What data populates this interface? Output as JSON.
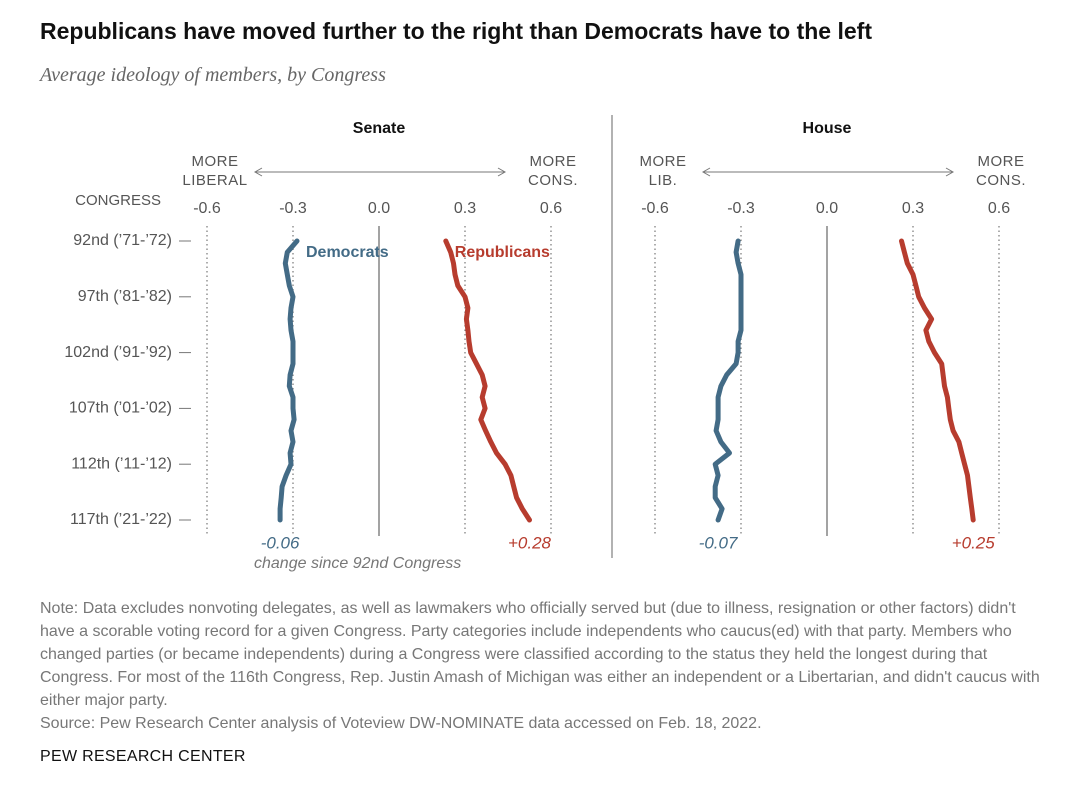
{
  "chart_data": {
    "type": "line",
    "title": "Republicans have moved further to the right than Democrats have to the left",
    "subtitle": "Average ideology of members, by Congress",
    "y_label": "CONGRESS",
    "categories": [
      "92nd (’71-’72)",
      null,
      null,
      null,
      null,
      "97th (’81-’82)",
      null,
      null,
      null,
      null,
      "102nd (’91-’92)",
      null,
      null,
      null,
      null,
      "107th (’01-’02)",
      null,
      null,
      null,
      null,
      "112th (’11-’12)",
      null,
      null,
      null,
      null,
      "117th (’21-’22)"
    ],
    "change_note": "change since 92nd Congress",
    "xlim": [
      -0.6,
      0.6
    ],
    "xticks": [
      -0.6,
      -0.3,
      {
        "value": 0,
        "label": "0.0"
      },
      0.3,
      0.6
    ],
    "grid": true,
    "panels": [
      {
        "title": "Senate",
        "left_label": "MORE LIBERAL",
        "right_label": "MORE CONS.",
        "series": [
          {
            "name": "Democrats",
            "color": "#436b86",
            "change": -0.06,
            "values": [
              -0.286,
              -0.32,
              -0.327,
              -0.32,
              -0.313,
              -0.3,
              -0.307,
              -0.31,
              -0.307,
              -0.3,
              -0.3,
              -0.3,
              -0.31,
              -0.313,
              -0.3,
              -0.3,
              -0.296,
              -0.307,
              -0.3,
              -0.31,
              -0.307,
              -0.324,
              -0.338,
              -0.341,
              -0.345,
              -0.345
            ]
          },
          {
            "name": "Republicans",
            "color": "#b73c2e",
            "change": 0.28,
            "change_label": "+0.28",
            "values": [
              0.233,
              0.25,
              0.26,
              0.265,
              0.275,
              0.3,
              0.31,
              0.305,
              0.31,
              0.314,
              0.32,
              0.34,
              0.36,
              0.37,
              0.36,
              0.37,
              0.355,
              0.372,
              0.39,
              0.41,
              0.44,
              0.46,
              0.47,
              0.48,
              0.5,
              0.525
            ]
          }
        ]
      },
      {
        "title": "House",
        "left_label": "MORE LIB.",
        "right_label": "MORE CONS.",
        "series": [
          {
            "color": "#436b86",
            "change": -0.07,
            "values": [
              -0.31,
              -0.317,
              -0.31,
              -0.3,
              -0.3,
              -0.3,
              -0.3,
              -0.3,
              -0.3,
              -0.31,
              -0.31,
              -0.317,
              -0.35,
              -0.37,
              -0.38,
              -0.38,
              -0.38,
              -0.387,
              -0.37,
              -0.34,
              -0.39,
              -0.38,
              -0.39,
              -0.39,
              -0.366,
              -0.38
            ]
          },
          {
            "color": "#b73c2e",
            "change": 0.25,
            "change_label": "+0.25",
            "values": [
              0.26,
              0.27,
              0.28,
              0.3,
              0.31,
              0.32,
              0.34,
              0.365,
              0.345,
              0.355,
              0.375,
              0.4,
              0.405,
              0.41,
              0.42,
              0.425,
              0.43,
              0.44,
              0.46,
              0.47,
              0.48,
              0.49,
              0.495,
              0.5,
              0.505,
              0.51
            ]
          }
        ]
      }
    ]
  },
  "note": "Note: Data excludes nonvoting delegates, as well as lawmakers who officially served but (due to illness, resignation or other factors) didn't have a scorable voting record for a given Congress. Party categories include independents who caucus(ed) with that party. Members who changed parties (or became independents) during a Congress were classified according to the status they held the longest during that Congress. For most of the 116th Congress, Rep. Justin Amash of Michigan was either an independent or a Libertarian, and didn't caucus with either major party.",
  "source": "Source: Pew Research Center analysis of Voteview DW-NOMINATE data accessed on Feb. 18, 2022.",
  "footer": "PEW RESEARCH CENTER"
}
